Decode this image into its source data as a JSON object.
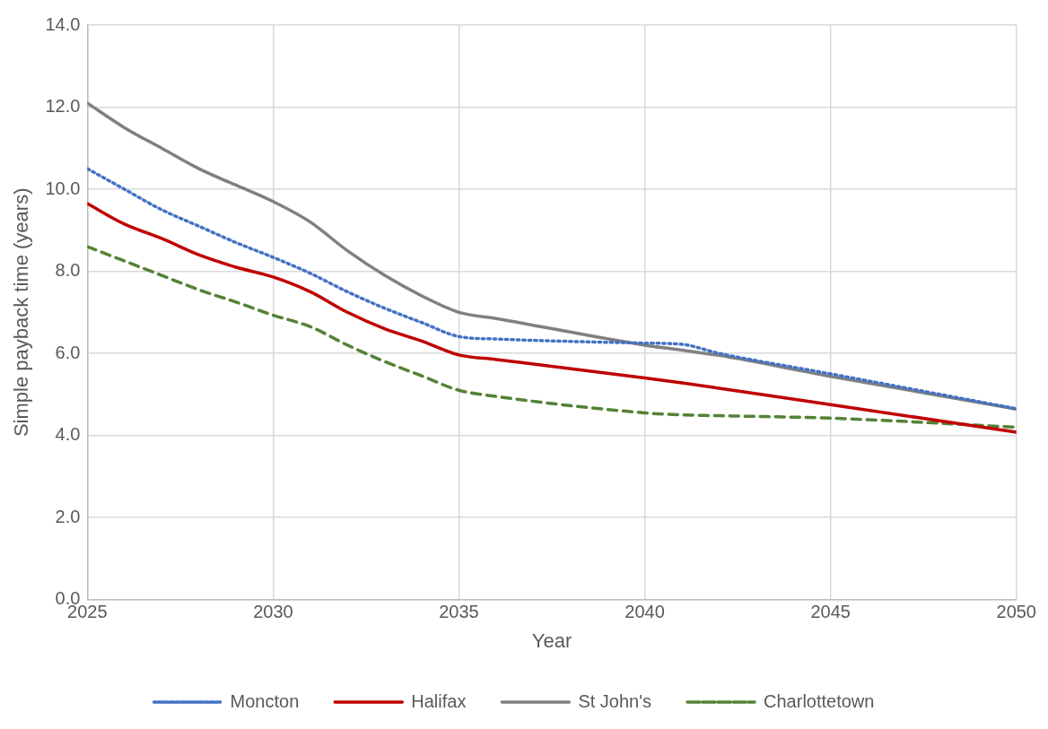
{
  "chart_data": {
    "type": "line",
    "xlabel": "Year",
    "ylabel": "Simple payback time (years)",
    "xlim": [
      2025,
      2050
    ],
    "xticks": [
      2025,
      2030,
      2035,
      2040,
      2045,
      2050
    ],
    "ylim": [
      0,
      14
    ],
    "yticks": [
      {
        "value": 0,
        "label": "0.0"
      },
      {
        "value": 2,
        "label": "2.0"
      },
      {
        "value": 4,
        "label": "4.0"
      },
      {
        "value": 6,
        "label": "6.0"
      },
      {
        "value": 8,
        "label": "8.0"
      },
      {
        "value": 10,
        "label": "10.0"
      },
      {
        "value": 12,
        "label": "12.0"
      },
      {
        "value": 14,
        "label": "14.0"
      }
    ],
    "grid": true,
    "legend": "bottom",
    "marker": "none",
    "series": [
      {
        "name": "Moncton",
        "color": "#4472c4",
        "line_style": "dotted",
        "x": [
          2025,
          2026,
          2027,
          2028,
          2029,
          2030,
          2031,
          2032,
          2033,
          2034,
          2035,
          2036,
          2040,
          2041,
          2042,
          2045,
          2050
        ],
        "values": [
          10.5,
          10.0,
          9.5,
          9.1,
          8.7,
          8.34,
          7.95,
          7.5,
          7.1,
          6.75,
          6.41,
          6.35,
          6.25,
          6.22,
          6.0,
          5.5,
          4.65
        ]
      },
      {
        "name": "Halifax",
        "color": "#c00000",
        "line_style": "solid",
        "x": [
          2025,
          2026,
          2027,
          2028,
          2029,
          2030,
          2031,
          2032,
          2033,
          2034,
          2035,
          2036,
          2040,
          2041,
          2042,
          2045,
          2050
        ],
        "values": [
          9.65,
          9.15,
          8.8,
          8.4,
          8.1,
          7.86,
          7.5,
          7.0,
          6.6,
          6.3,
          5.96,
          5.85,
          5.4,
          5.28,
          5.15,
          4.75,
          4.08
        ]
      },
      {
        "name": "St John's",
        "color": "#808080",
        "line_style": "solid",
        "x": [
          2025,
          2026,
          2027,
          2028,
          2029,
          2030,
          2031,
          2032,
          2033,
          2034,
          2035,
          2036,
          2040,
          2041,
          2042,
          2045,
          2050
        ],
        "values": [
          12.1,
          11.5,
          11.0,
          10.5,
          10.1,
          9.7,
          9.2,
          8.5,
          7.9,
          7.4,
          7.0,
          6.85,
          6.2,
          6.08,
          5.95,
          5.44,
          4.64
        ]
      },
      {
        "name": "Charlottetown",
        "color": "#548235",
        "line_style": "dashed",
        "x": [
          2025,
          2026,
          2027,
          2028,
          2029,
          2030,
          2031,
          2032,
          2033,
          2034,
          2035,
          2036,
          2040,
          2041,
          2042,
          2045,
          2050
        ],
        "values": [
          8.6,
          8.25,
          7.9,
          7.55,
          7.25,
          6.93,
          6.65,
          6.2,
          5.8,
          5.45,
          5.1,
          4.95,
          4.55,
          4.5,
          4.48,
          4.42,
          4.2
        ]
      }
    ]
  }
}
